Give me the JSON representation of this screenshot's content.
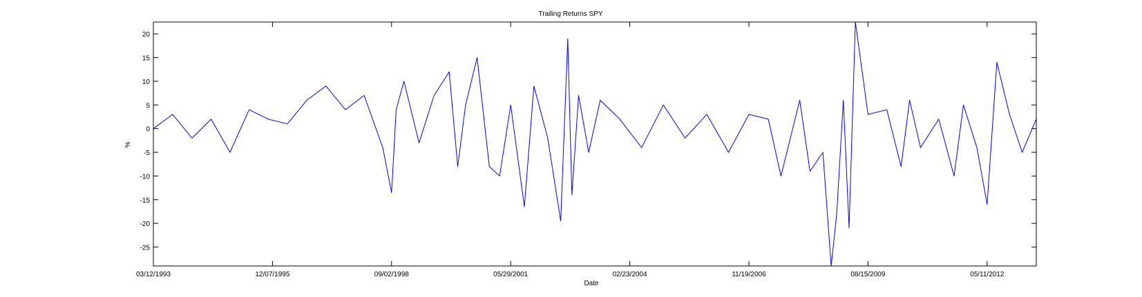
{
  "chart_data": {
    "type": "line",
    "title": "Trailing Returns SPY",
    "xlabel": "Date",
    "ylabel": "%",
    "x_ticks": [
      "03/12/1993",
      "12/07/1995",
      "09/02/1998",
      "05/29/2001",
      "02/23/2004",
      "11/19/2006",
      "08/15/2009",
      "05/11/2012"
    ],
    "y_ticks": [
      20,
      15,
      10,
      5,
      0,
      -5,
      -10,
      -15,
      -20,
      -25
    ],
    "xlim": [
      "03/12/1993",
      "06/28/2013"
    ],
    "ylim": [
      -29,
      22.5
    ],
    "grid": false,
    "series": [
      {
        "color": "#0000ff",
        "x": [
          "03/12/1993",
          "08/20/1993",
          "01/30/1994",
          "07/10/1994",
          "12/15/1994",
          "05/25/1995",
          "11/01/1995",
          "04/10/1996",
          "09/20/1996",
          "02/28/1997",
          "08/10/1997",
          "01/15/1998",
          "06/20/1998",
          "09/02/1998",
          "10/10/1998",
          "12/15/1998",
          "04/20/1999",
          "08/25/1999",
          "12/30/1999",
          "03/10/2000",
          "05/15/2000",
          "08/20/2000",
          "12/01/2000",
          "02/25/2001",
          "05/29/2001",
          "09/21/2001",
          "12/10/2001",
          "04/05/2002",
          "07/23/2002",
          "09/20/2002",
          "10/25/2002",
          "12/20/2002",
          "03/15/2003",
          "06/20/2003",
          "12/01/2003",
          "06/01/2004",
          "12/01/2004",
          "06/01/2005",
          "12/01/2005",
          "06/01/2006",
          "11/19/2006",
          "05/01/2007",
          "08/15/2007",
          "01/20/2008",
          "04/15/2008",
          "08/01/2008",
          "10/10/2008",
          "11/25/2008",
          "01/20/2009",
          "03/09/2009",
          "05/01/2009",
          "08/15/2009",
          "01/20/2010",
          "05/20/2010",
          "07/30/2010",
          "10/30/2010",
          "04/01/2011",
          "08/08/2011",
          "10/25/2011",
          "02/15/2012",
          "05/11/2012",
          "08/01/2012",
          "11/15/2012",
          "03/01/2013",
          "06/28/2013"
        ],
        "values": [
          0,
          3,
          -2,
          2,
          -5,
          4,
          2,
          1,
          6,
          9,
          4,
          7,
          -4,
          -13.5,
          4,
          10,
          -3,
          7,
          12,
          -8,
          5,
          15,
          -8,
          -10,
          5,
          -16.5,
          9,
          -2,
          -19.5,
          19,
          -14,
          7,
          -5,
          6,
          2,
          -4,
          5,
          -2,
          3,
          -5,
          3,
          2,
          -10,
          6,
          -9,
          -5,
          -29,
          -18,
          6,
          -21,
          22.5,
          3,
          4,
          -8,
          6,
          -4,
          2,
          -10,
          5,
          -4,
          -16,
          14,
          3,
          -5,
          2
        ]
      }
    ]
  }
}
